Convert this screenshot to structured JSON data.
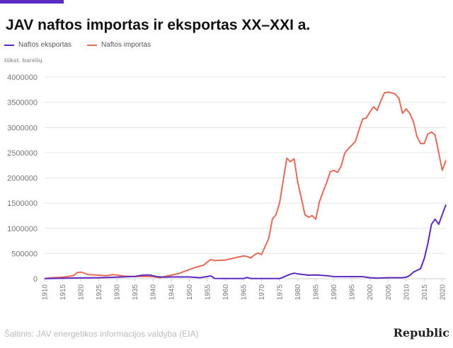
{
  "title": "JAV naftos importas ir eksportas XX–XXI a.",
  "units_label": "tūkst. barelių",
  "source": "Šaltinis: JAV energetikos informacijos valdyba (EIA)",
  "logo": "Republic",
  "colors": {
    "accent_bar": "#5b2bc2",
    "exports": "#5b2bc2",
    "imports": "#e86a56",
    "grid": "#e4e4e4"
  },
  "chart_data": {
    "type": "line",
    "title": "JAV naftos importas ir eksportas XX–XXI a.",
    "ylabel": "tūkst. barelių",
    "xlabel": "",
    "xlim": [
      1910,
      2021
    ],
    "ylim": [
      0,
      4000000
    ],
    "grid": true,
    "legend_position": "top-left",
    "yticks": [
      {
        "value": 0,
        "label": "0"
      },
      {
        "value": 500000,
        "label": "500000"
      },
      {
        "value": 1000000,
        "label": "1000000"
      },
      {
        "value": 1500000,
        "label": "1500000"
      },
      {
        "value": 2000000,
        "label": "2000000"
      },
      {
        "value": 2500000,
        "label": "2500000"
      },
      {
        "value": 3000000,
        "label": "3000000"
      },
      {
        "value": 3500000,
        "label": "3500000"
      },
      {
        "value": 4000000,
        "label": "4000000"
      }
    ],
    "xticks": [
      "1910",
      "1915",
      "1920",
      "1925",
      "1930",
      "1935",
      "1940",
      "1945",
      "1950",
      "1955",
      "1960",
      "1965",
      "1970",
      "1975",
      "1980",
      "1985",
      "1990",
      "1995",
      "2000",
      "2005",
      "2010",
      "2015",
      "2020"
    ],
    "series": [
      {
        "name": "Naftos eksportas",
        "color": "#5b2bc2",
        "points": [
          [
            1910,
            2000
          ],
          [
            1920,
            15000
          ],
          [
            1925,
            20000
          ],
          [
            1930,
            30000
          ],
          [
            1935,
            45000
          ],
          [
            1937,
            70000
          ],
          [
            1939,
            75000
          ],
          [
            1941,
            40000
          ],
          [
            1943,
            30000
          ],
          [
            1945,
            35000
          ],
          [
            1950,
            35000
          ],
          [
            1953,
            20000
          ],
          [
            1956,
            55000
          ],
          [
            1957,
            5000
          ],
          [
            1960,
            3000
          ],
          [
            1965,
            3000
          ],
          [
            1966,
            25000
          ],
          [
            1967,
            3000
          ],
          [
            1975,
            3000
          ],
          [
            1976,
            30000
          ],
          [
            1977,
            60000
          ],
          [
            1978,
            90000
          ],
          [
            1979,
            110000
          ],
          [
            1980,
            95000
          ],
          [
            1983,
            70000
          ],
          [
            1985,
            75000
          ],
          [
            1988,
            60000
          ],
          [
            1990,
            40000
          ],
          [
            1995,
            40000
          ],
          [
            1998,
            40000
          ],
          [
            2000,
            20000
          ],
          [
            2002,
            10000
          ],
          [
            2005,
            20000
          ],
          [
            2009,
            20000
          ],
          [
            2010,
            30000
          ],
          [
            2011,
            60000
          ],
          [
            2012,
            130000
          ],
          [
            2014,
            200000
          ],
          [
            2015,
            400000
          ],
          [
            2016,
            700000
          ],
          [
            2017,
            1080000
          ],
          [
            2018,
            1180000
          ],
          [
            2019,
            1080000
          ],
          [
            2021,
            1470000
          ]
        ]
      },
      {
        "name": "Naftos importas",
        "color": "#e86a56",
        "points": [
          [
            1910,
            2000
          ],
          [
            1912,
            20000
          ],
          [
            1915,
            30000
          ],
          [
            1918,
            60000
          ],
          [
            1919,
            120000
          ],
          [
            1920,
            130000
          ],
          [
            1921,
            110000
          ],
          [
            1922,
            80000
          ],
          [
            1925,
            70000
          ],
          [
            1927,
            60000
          ],
          [
            1929,
            80000
          ],
          [
            1932,
            50000
          ],
          [
            1935,
            40000
          ],
          [
            1937,
            45000
          ],
          [
            1940,
            40000
          ],
          [
            1941,
            30000
          ],
          [
            1942,
            20000
          ],
          [
            1943,
            40000
          ],
          [
            1945,
            70000
          ],
          [
            1947,
            100000
          ],
          [
            1950,
            180000
          ],
          [
            1952,
            230000
          ],
          [
            1954,
            270000
          ],
          [
            1955,
            330000
          ],
          [
            1956,
            380000
          ],
          [
            1957,
            360000
          ],
          [
            1960,
            370000
          ],
          [
            1963,
            420000
          ],
          [
            1965,
            450000
          ],
          [
            1966,
            440000
          ],
          [
            1967,
            410000
          ],
          [
            1968,
            470000
          ],
          [
            1969,
            510000
          ],
          [
            1970,
            480000
          ],
          [
            1972,
            800000
          ],
          [
            1973,
            1180000
          ],
          [
            1974,
            1270000
          ],
          [
            1975,
            1500000
          ],
          [
            1976,
            1950000
          ],
          [
            1977,
            2390000
          ],
          [
            1978,
            2320000
          ],
          [
            1979,
            2380000
          ],
          [
            1980,
            1920000
          ],
          [
            1981,
            1600000
          ],
          [
            1982,
            1270000
          ],
          [
            1983,
            1220000
          ],
          [
            1984,
            1250000
          ],
          [
            1985,
            1180000
          ],
          [
            1986,
            1520000
          ],
          [
            1987,
            1720000
          ],
          [
            1988,
            1900000
          ],
          [
            1989,
            2120000
          ],
          [
            1990,
            2150000
          ],
          [
            1991,
            2110000
          ],
          [
            1992,
            2230000
          ],
          [
            1993,
            2490000
          ],
          [
            1994,
            2580000
          ],
          [
            1995,
            2650000
          ],
          [
            1996,
            2730000
          ],
          [
            1997,
            2960000
          ],
          [
            1998,
            3170000
          ],
          [
            1999,
            3190000
          ],
          [
            2000,
            3310000
          ],
          [
            2001,
            3410000
          ],
          [
            2002,
            3340000
          ],
          [
            2003,
            3530000
          ],
          [
            2004,
            3690000
          ],
          [
            2005,
            3700000
          ],
          [
            2006,
            3690000
          ],
          [
            2007,
            3660000
          ],
          [
            2008,
            3580000
          ],
          [
            2009,
            3280000
          ],
          [
            2010,
            3370000
          ],
          [
            2011,
            3280000
          ],
          [
            2012,
            3120000
          ],
          [
            2013,
            2820000
          ],
          [
            2014,
            2680000
          ],
          [
            2015,
            2680000
          ],
          [
            2016,
            2870000
          ],
          [
            2017,
            2910000
          ],
          [
            2018,
            2850000
          ],
          [
            2019,
            2500000
          ],
          [
            2020,
            2150000
          ],
          [
            2021,
            2350000
          ]
        ]
      }
    ]
  }
}
